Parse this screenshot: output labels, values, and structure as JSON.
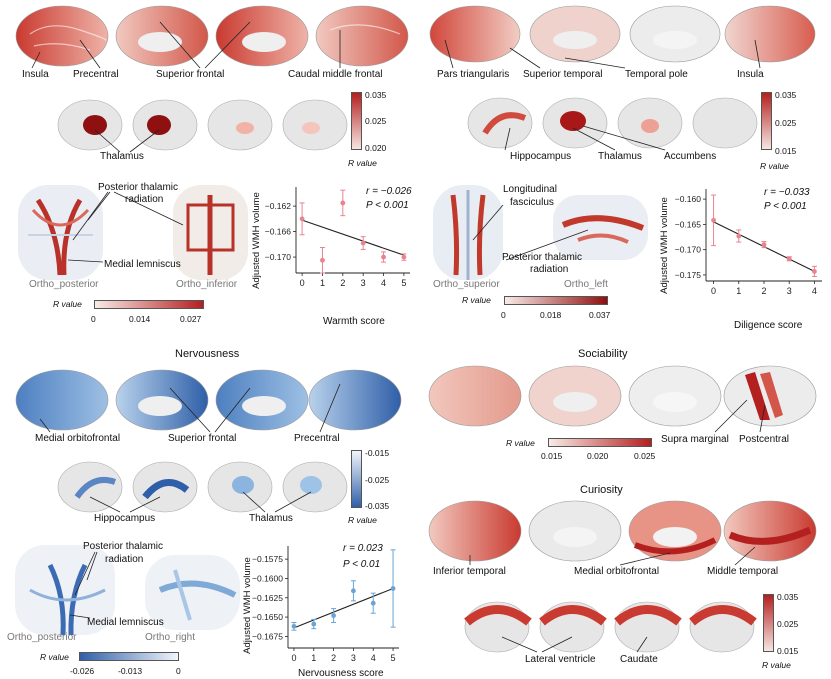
{
  "colors": {
    "red_dark": "#b41f1f",
    "red_mid": "#e07a6a",
    "red_light": "#f6dcd6",
    "blue_dark": "#2f5fa8",
    "blue_mid": "#7fa9d6",
    "blue_light": "#e5eef8",
    "cortex_gray": "#d9d9d9",
    "line_black": "#222222",
    "error_red": "#e8838f",
    "error_blue": "#6aa4d4"
  },
  "panels": {
    "warmth": {
      "cortex_labels": [
        "Insula",
        "Precentral",
        "Superior frontal",
        "Caudal middle frontal"
      ],
      "subcortex_labels": [
        "Thalamus"
      ],
      "colorbar": {
        "ticks": [
          "0.035",
          "0.025",
          "0.020"
        ],
        "label": "R value"
      },
      "tract_labels": [
        "Posterior thalamic",
        "radiation",
        "Medial lemniscus"
      ],
      "views": [
        "Ortho_posterior",
        "Ortho_inferior"
      ],
      "hcolorbar": {
        "label": "R value",
        "ticks": [
          "0",
          "0.014",
          "0.027"
        ]
      }
    },
    "diligence": {
      "cortex_labels": [
        "Pars triangularis",
        "Superior temporal",
        "Temporal pole",
        "Insula"
      ],
      "subcortex_labels": [
        "Hippocampus",
        "Thalamus",
        "Accumbens"
      ],
      "colorbar": {
        "ticks": [
          "0.035",
          "0.025",
          "0.015"
        ],
        "label": "R value"
      },
      "tract_labels": [
        "Longitudinal",
        "fasciculus",
        "Posterior thalamic",
        "radiation"
      ],
      "views": [
        "Ortho_superior",
        "Ortho_left"
      ],
      "hcolorbar": {
        "label": "R value",
        "ticks": [
          "0",
          "0.018",
          "0.037"
        ]
      }
    },
    "nervousness": {
      "title": "Nervousness",
      "cortex_labels": [
        "Medial orbitofrontal",
        "Superior frontal",
        "Precentral"
      ],
      "subcortex_labels": [
        "Hippocampus",
        "Thalamus"
      ],
      "colorbar": {
        "ticks": [
          "-0.015",
          "-0.025",
          "-0.035"
        ],
        "label": "R value"
      },
      "tract_labels": [
        "Posterior thalamic",
        "radiation",
        "Medial lemniscus"
      ],
      "views": [
        "Ortho_posterior",
        "Ortho_right"
      ],
      "hcolorbar": {
        "label": "R value",
        "ticks": [
          "-0.026",
          "-0.013",
          "0"
        ]
      }
    },
    "sociability": {
      "title": "Sociability",
      "cortex_labels": [
        "Supra marginal",
        "Postcentral"
      ],
      "hcolorbar": {
        "label": "R value",
        "ticks": [
          "0.015",
          "0.020",
          "0.025"
        ]
      }
    },
    "curiosity": {
      "title": "Curiosity",
      "cortex_labels": [
        "Inferior temporal",
        "Medial orbitofrontal",
        "Middle temporal"
      ],
      "subcortex_labels": [
        "Lateral ventricle",
        "Caudate"
      ],
      "colorbar": {
        "ticks": [
          "0.035",
          "0.025",
          "0.015"
        ],
        "label": "R value"
      }
    }
  },
  "chart_data": [
    {
      "type": "scatter",
      "xlabel": "Warmth score",
      "ylabel": "Adjusted WMH volume",
      "annotation_r": "r = −0.026",
      "annotation_p": "P < 0.001",
      "x": [
        0,
        1,
        2,
        3,
        4,
        5
      ],
      "y": [
        -0.164,
        -0.1705,
        -0.1615,
        -0.1678,
        -0.17,
        -0.17
      ],
      "err": [
        0.0025,
        0.002,
        0.002,
        0.001,
        0.0008,
        0.0005
      ],
      "fit": [
        [
          0,
          -0.1642
        ],
        [
          5,
          -0.1697
        ]
      ],
      "xticks": [
        "0",
        "1",
        "2",
        "3",
        "4",
        "5"
      ],
      "yticks": [
        "-0.162",
        "-0.166",
        "-0.170"
      ],
      "ylim": [
        -0.1725,
        -0.159
      ],
      "series_color": "#e8838f"
    },
    {
      "type": "scatter",
      "xlabel": "Diligence score",
      "ylabel": "Adjusted WMH volume",
      "annotation_r": "r = −0.033",
      "annotation_p": "P < 0.001",
      "x": [
        0,
        1,
        2,
        3,
        4
      ],
      "y": [
        -0.1642,
        -0.1673,
        -0.169,
        -0.1718,
        -0.1743
      ],
      "err": [
        0.005,
        0.0012,
        0.0006,
        0.0004,
        0.001
      ],
      "fit": [
        [
          0,
          -0.1645
        ],
        [
          4,
          -0.1743
        ]
      ],
      "xticks": [
        "0",
        "1",
        "2",
        "3",
        "4"
      ],
      "yticks": [
        "-0.160",
        "-0.165",
        "-0.170",
        "-0.175"
      ],
      "ylim": [
        -0.1762,
        -0.158
      ],
      "series_color": "#e8838f"
    },
    {
      "type": "scatter",
      "xlabel": "Nervousness score",
      "ylabel": "Adjusted WMH volume",
      "annotation_r": "r = 0.023",
      "annotation_p": "P < 0.01",
      "x": [
        0,
        1,
        2,
        3,
        4,
        5
      ],
      "y": [
        -0.1662,
        -0.1659,
        -0.1648,
        -0.1616,
        -0.1632,
        -0.1613
      ],
      "err": [
        0.0005,
        0.0006,
        0.0009,
        0.0013,
        0.0013,
        0.005
      ],
      "fit": [
        [
          0,
          -0.1664
        ],
        [
          5,
          -0.1613
        ]
      ],
      "xticks": [
        "0",
        "1",
        "2",
        "3",
        "4",
        "5"
      ],
      "yticks": [
        "-0.1575",
        "-0.1600",
        "-0.1625",
        "-0.1650",
        "-0.1675"
      ],
      "ylim": [
        -0.169,
        -0.1558
      ],
      "series_color": "#6aa4d4"
    }
  ]
}
